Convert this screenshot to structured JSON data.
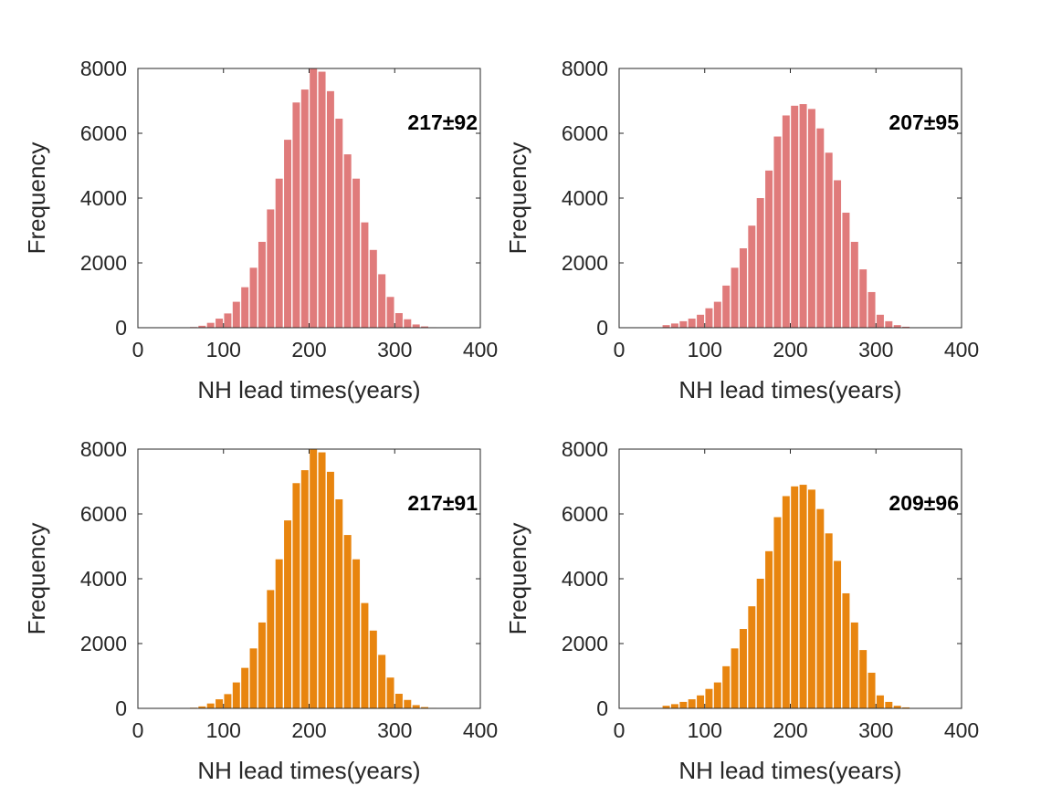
{
  "chart_data": [
    {
      "type": "bar",
      "annotation": "217±92",
      "xlabel": "NH lead times(years)",
      "ylabel": "Frequency",
      "xlim": [
        0,
        400
      ],
      "ylim": [
        0,
        8000
      ],
      "xticks": [
        0,
        100,
        200,
        300,
        400
      ],
      "yticks": [
        0,
        2000,
        4000,
        6000,
        8000
      ],
      "color": "#e07b7b",
      "bin_width": 10,
      "bin_centers": [
        65,
        75,
        85,
        95,
        105,
        115,
        125,
        135,
        145,
        155,
        165,
        175,
        185,
        195,
        205,
        215,
        225,
        235,
        245,
        255,
        265,
        275,
        285,
        295,
        305,
        315,
        325,
        335,
        345,
        355
      ],
      "values": [
        20,
        60,
        150,
        280,
        440,
        800,
        1250,
        1850,
        2650,
        3650,
        4600,
        5800,
        6950,
        7350,
        8050,
        7900,
        7300,
        6450,
        5350,
        4600,
        3250,
        2400,
        1650,
        950,
        450,
        260,
        100,
        40,
        15,
        5
      ]
    },
    {
      "type": "bar",
      "annotation": "207±95",
      "xlabel": "NH lead times(years)",
      "ylabel": "Frequency",
      "xlim": [
        0,
        400
      ],
      "ylim": [
        0,
        8000
      ],
      "xticks": [
        0,
        100,
        200,
        300,
        400
      ],
      "yticks": [
        0,
        2000,
        4000,
        6000,
        8000
      ],
      "color": "#e07b7b",
      "bin_width": 10,
      "bin_centers": [
        55,
        65,
        75,
        85,
        95,
        105,
        115,
        125,
        135,
        145,
        155,
        165,
        175,
        185,
        195,
        205,
        215,
        225,
        235,
        245,
        255,
        265,
        275,
        285,
        295,
        305,
        315,
        325,
        335,
        345
      ],
      "values": [
        80,
        130,
        200,
        280,
        400,
        600,
        800,
        1300,
        1850,
        2450,
        3150,
        4000,
        4850,
        5900,
        6550,
        6850,
        6900,
        6750,
        6150,
        5400,
        4550,
        3550,
        2650,
        1800,
        1100,
        400,
        200,
        80,
        30,
        10
      ]
    },
    {
      "type": "bar",
      "annotation": "217±91",
      "xlabel": "NH lead times(years)",
      "ylabel": "Frequency",
      "xlim": [
        0,
        400
      ],
      "ylim": [
        0,
        8000
      ],
      "xticks": [
        0,
        100,
        200,
        300,
        400
      ],
      "yticks": [
        0,
        2000,
        4000,
        6000,
        8000
      ],
      "color": "#e8850f",
      "bin_width": 10,
      "bin_centers": [
        65,
        75,
        85,
        95,
        105,
        115,
        125,
        135,
        145,
        155,
        165,
        175,
        185,
        195,
        205,
        215,
        225,
        235,
        245,
        255,
        265,
        275,
        285,
        295,
        305,
        315,
        325,
        335,
        345,
        355
      ],
      "values": [
        20,
        60,
        150,
        280,
        440,
        800,
        1250,
        1850,
        2650,
        3650,
        4600,
        5800,
        6950,
        7350,
        8050,
        7900,
        7300,
        6450,
        5350,
        4600,
        3250,
        2400,
        1650,
        950,
        450,
        260,
        100,
        40,
        15,
        5
      ]
    },
    {
      "type": "bar",
      "annotation": "209±96",
      "xlabel": "NH lead times(years)",
      "ylabel": "Frequency",
      "xlim": [
        0,
        400
      ],
      "ylim": [
        0,
        8000
      ],
      "xticks": [
        0,
        100,
        200,
        300,
        400
      ],
      "yticks": [
        0,
        2000,
        4000,
        6000,
        8000
      ],
      "color": "#e8850f",
      "bin_width": 10,
      "bin_centers": [
        55,
        65,
        75,
        85,
        95,
        105,
        115,
        125,
        135,
        145,
        155,
        165,
        175,
        185,
        195,
        205,
        215,
        225,
        235,
        245,
        255,
        265,
        275,
        285,
        295,
        305,
        315,
        325,
        335,
        345
      ],
      "values": [
        80,
        130,
        200,
        280,
        400,
        600,
        800,
        1300,
        1850,
        2450,
        3150,
        4000,
        4850,
        5900,
        6550,
        6850,
        6900,
        6750,
        6150,
        5400,
        4550,
        3550,
        2650,
        1800,
        1100,
        400,
        200,
        80,
        30,
        10
      ]
    }
  ]
}
